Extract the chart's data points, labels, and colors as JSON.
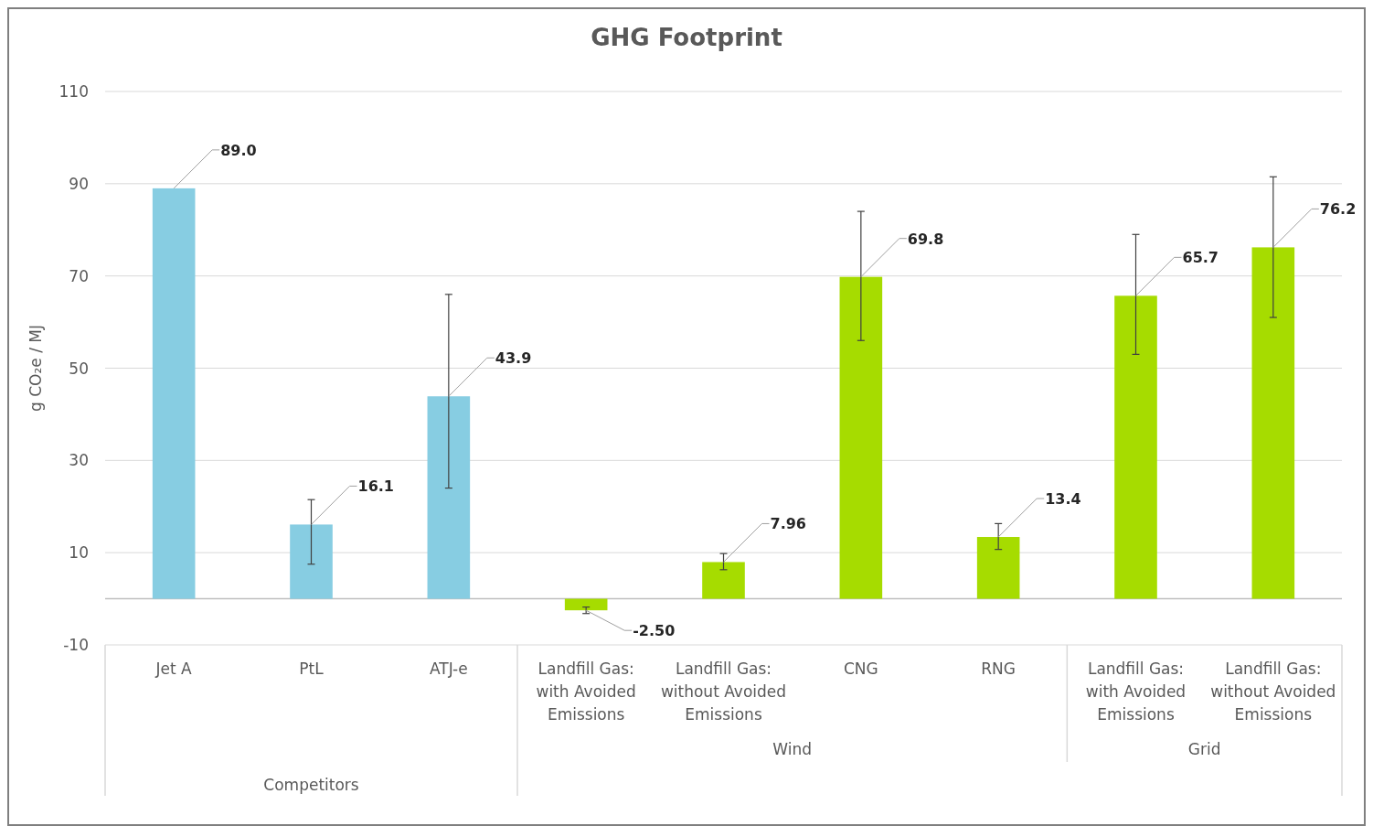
{
  "chart_data": {
    "type": "bar",
    "title": "GHG Footprint",
    "ylabel": "g CO₂e / MJ",
    "categories": [
      "Jet A",
      "PtL",
      "ATJ-e",
      "Landfill Gas: with Avoided Emissions",
      "Landfill Gas: without Avoided Emissions",
      "CNG",
      "RNG",
      "Landfill Gas: with Avoided Emissions",
      "Landfill Gas: without Avoided Emissions"
    ],
    "values": [
      89.0,
      16.1,
      43.9,
      -2.5,
      7.96,
      69.8,
      13.4,
      65.7,
      76.2
    ],
    "value_labels": [
      "89.0",
      "16.1",
      "43.9",
      "-2.50",
      "7.96",
      "69.8",
      "13.4",
      "65.7",
      "76.2"
    ],
    "errors": [
      null,
      [
        7.5,
        21.5
      ],
      [
        24,
        66
      ],
      [
        -3.2,
        -1.8
      ],
      [
        6.3,
        9.8
      ],
      [
        56,
        84
      ],
      [
        10.7,
        16.3
      ],
      [
        53,
        79
      ],
      [
        61,
        91.5
      ]
    ],
    "colors": [
      "#87cde2",
      "#87cde2",
      "#87cde2",
      "#a6dc00",
      "#a6dc00",
      "#a6dc00",
      "#a6dc00",
      "#a6dc00",
      "#a6dc00"
    ],
    "annotations": [
      "Wind",
      "Grid",
      "Competitors"
    ],
    "ylim": [
      -10,
      110
    ],
    "yticks": [
      -10,
      10,
      30,
      50,
      70,
      90,
      110
    ],
    "grid": "y"
  }
}
